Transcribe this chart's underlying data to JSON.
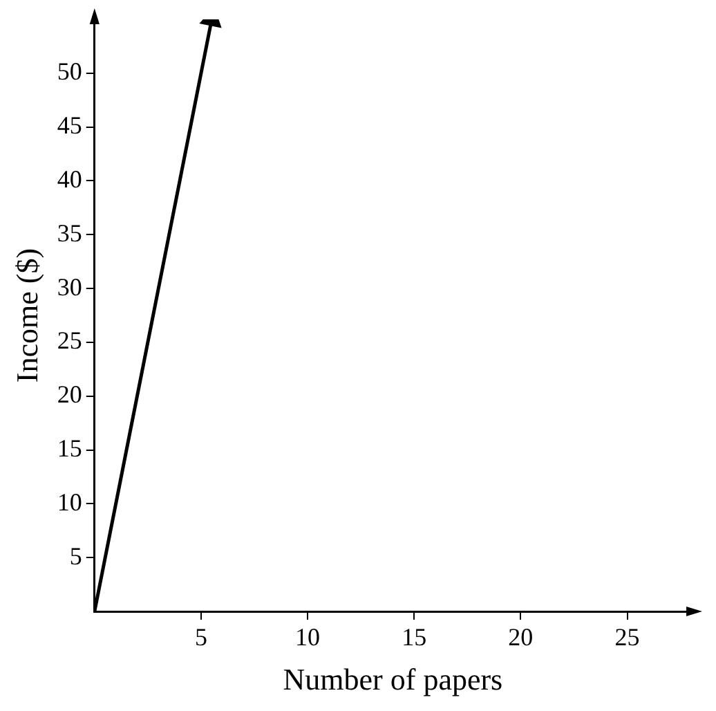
{
  "chart_data": {
    "type": "line",
    "xlabel": "Number of papers",
    "ylabel": "Income ($)",
    "x": [
      0,
      5.5
    ],
    "series": [
      {
        "color": "#000000",
        "values": [
          0,
          55
        ]
      }
    ],
    "xlim": [
      0,
      28
    ],
    "ylim": [
      0,
      55
    ],
    "xticks": [
      5,
      10,
      15,
      20,
      25
    ],
    "yticks": [
      5,
      10,
      15,
      20,
      25,
      30,
      35,
      40,
      45,
      50
    ],
    "grid": false,
    "legend": false
  }
}
